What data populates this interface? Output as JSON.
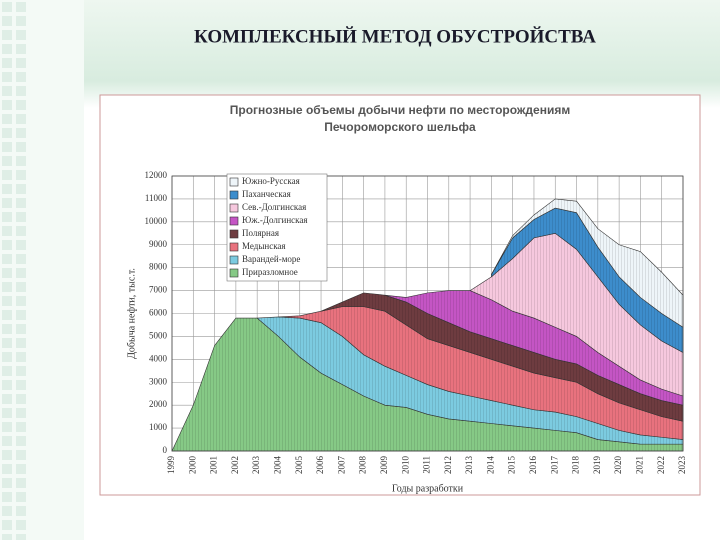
{
  "slide_title": "КОМПЛЕКСНЫЙ МЕТОД ОБУСТРОЙСТВА",
  "chart_data": {
    "type": "stacked-area",
    "title": [
      "Прогнозные объемы добычи нефти по месторождениям",
      "Печороморского шельфа"
    ],
    "y_label": "Добыча нефти, тыс.т.",
    "x_label": "Годы разработки",
    "x": [
      1999,
      2000,
      2001,
      2002,
      2003,
      2004,
      2005,
      2006,
      2007,
      2008,
      2009,
      2010,
      2011,
      2012,
      2013,
      2014,
      2015,
      2016,
      2017,
      2018,
      2019,
      2020,
      2021,
      2022,
      2023
    ],
    "xlim": [
      1999,
      2023
    ],
    "ylim": [
      0,
      12000
    ],
    "yticks": [
      0,
      1000,
      2000,
      3000,
      4000,
      5000,
      6000,
      7000,
      8000,
      9000,
      10000,
      11000,
      12000
    ],
    "grid": true,
    "legend": "upper left",
    "series": [
      {
        "name": "Приразломное",
        "color": "#86c986",
        "values": [
          0,
          2000,
          4600,
          5800,
          5800,
          5000,
          4100,
          3400,
          2900,
          2400,
          2000,
          1900,
          1600,
          1400,
          1300,
          1200,
          1100,
          1000,
          900,
          800,
          500,
          400,
          300,
          300,
          300
        ]
      },
      {
        "name": "Варандей-море",
        "color": "#7ccbe0",
        "values": [
          null,
          null,
          null,
          null,
          0,
          850,
          1700,
          2200,
          2100,
          1800,
          1700,
          1400,
          1300,
          1200,
          1100,
          1000,
          900,
          800,
          800,
          700,
          700,
          500,
          400,
          300,
          200
        ]
      },
      {
        "name": "Медынская",
        "color": "#e8727e",
        "values": [
          null,
          null,
          null,
          null,
          null,
          0,
          100,
          500,
          1300,
          2100,
          2400,
          2200,
          2000,
          2000,
          1900,
          1800,
          1700,
          1600,
          1500,
          1500,
          1300,
          1200,
          1100,
          900,
          800
        ]
      },
      {
        "name": "Полярная",
        "color": "#6e3c40",
        "values": [
          null,
          null,
          null,
          null,
          null,
          null,
          null,
          0,
          200,
          600,
          700,
          1000,
          1100,
          1000,
          900,
          900,
          900,
          900,
          800,
          800,
          800,
          800,
          700,
          700,
          700
        ]
      },
      {
        "name": "Юж.-Долгинская",
        "color": "#c455c4",
        "values": [
          null,
          null,
          null,
          null,
          null,
          null,
          null,
          null,
          null,
          null,
          0,
          200,
          900,
          1400,
          1800,
          1700,
          1500,
          1500,
          1400,
          1200,
          1000,
          800,
          600,
          500,
          400
        ]
      },
      {
        "name": "Сев.-Долгинская",
        "color": "#f6c8de",
        "values": [
          null,
          null,
          null,
          null,
          null,
          null,
          null,
          null,
          null,
          null,
          null,
          null,
          null,
          null,
          0,
          1000,
          2300,
          3500,
          4100,
          3800,
          3300,
          2700,
          2400,
          2100,
          1900
        ]
      },
      {
        "name": "Паханческая",
        "color": "#3d8dcc",
        "values": [
          null,
          null,
          null,
          null,
          null,
          null,
          null,
          null,
          null,
          null,
          null,
          null,
          null,
          null,
          null,
          100,
          900,
          800,
          1100,
          1600,
          1300,
          1200,
          1200,
          1200,
          1100
        ]
      },
      {
        "name": "Южно-Русская",
        "color": "#eef5f9",
        "values": [
          null,
          null,
          null,
          null,
          null,
          null,
          null,
          null,
          null,
          null,
          null,
          null,
          null,
          null,
          null,
          0,
          100,
          200,
          400,
          500,
          800,
          1400,
          2000,
          1800,
          1400
        ]
      }
    ]
  }
}
